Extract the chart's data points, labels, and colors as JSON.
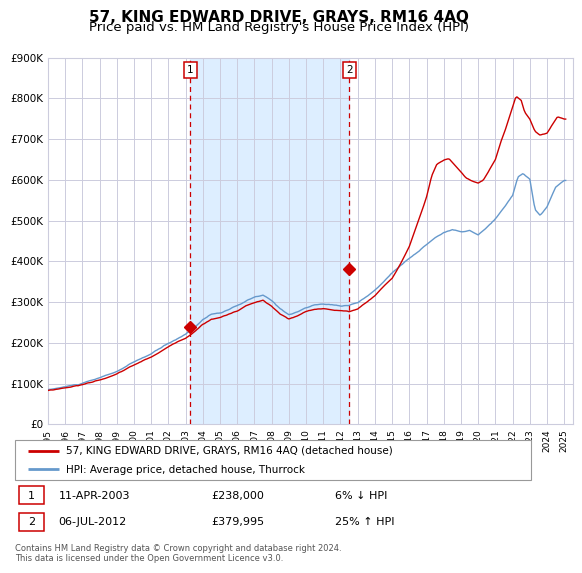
{
  "title": "57, KING EDWARD DRIVE, GRAYS, RM16 4AQ",
  "subtitle": "Price paid vs. HM Land Registry's House Price Index (HPI)",
  "x_start_year": 1995,
  "x_end_year": 2025,
  "y_min": 0,
  "y_max": 900000,
  "y_ticks": [
    0,
    100000,
    200000,
    300000,
    400000,
    500000,
    600000,
    700000,
    800000,
    900000
  ],
  "y_tick_labels": [
    "£0",
    "£100K",
    "£200K",
    "£300K",
    "£400K",
    "£500K",
    "£600K",
    "£700K",
    "£800K",
    "£900K"
  ],
  "sale1_year": 2003.27,
  "sale1_price": 238000,
  "sale2_year": 2012.5,
  "sale2_price": 379995,
  "legend1": "57, KING EDWARD DRIVE, GRAYS, RM16 4AQ (detached house)",
  "legend2": "HPI: Average price, detached house, Thurrock",
  "note1_label": "1",
  "note1_date": "11-APR-2003",
  "note1_price": "£238,000",
  "note1_hpi": "6% ↓ HPI",
  "note2_label": "2",
  "note2_date": "06-JUL-2012",
  "note2_price": "£379,995",
  "note2_hpi": "25% ↑ HPI",
  "footer": "Contains HM Land Registry data © Crown copyright and database right 2024.\nThis data is licensed under the Open Government Licence v3.0.",
  "red_color": "#cc0000",
  "blue_color": "#6699cc",
  "bg_span_color": "#ddeeff",
  "grid_color": "#ccccdd",
  "title_fontsize": 11,
  "subtitle_fontsize": 9.5
}
